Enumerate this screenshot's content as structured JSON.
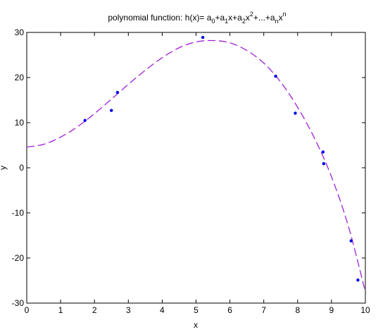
{
  "chart_data": {
    "type": "scatter",
    "title": "polynomial function: h(x)= a0+a1x+a2x2+...+anxn",
    "xlabel": "x",
    "ylabel": "y",
    "xlim": [
      0,
      10
    ],
    "ylim": [
      -30,
      30
    ],
    "xticks": [
      0,
      1,
      2,
      3,
      4,
      5,
      6,
      7,
      8,
      9,
      10
    ],
    "yticks": [
      -30,
      -20,
      -10,
      0,
      10,
      20,
      30
    ],
    "grid": false,
    "points": {
      "x": [
        1.72,
        2.5,
        2.68,
        5.2,
        7.35,
        7.93,
        8.75,
        8.77,
        9.58,
        9.78
      ],
      "y": [
        10.5,
        12.7,
        16.7,
        28.9,
        20.3,
        12.1,
        3.5,
        0.9,
        -16.2,
        -24.9
      ]
    },
    "fit_curve": {
      "x": [
        0,
        0.5,
        1,
        1.5,
        2,
        2.5,
        3,
        3.5,
        4,
        4.5,
        5,
        5.5,
        6,
        6.5,
        7,
        7.5,
        8,
        8.5,
        9,
        9.5,
        10
      ],
      "y": [
        4.6,
        5.2,
        6.8,
        9.1,
        12.0,
        15.2,
        18.5,
        21.6,
        24.4,
        26.6,
        27.9,
        28.2,
        27.7,
        26.0,
        23.2,
        19.0,
        13.4,
        6.5,
        -2.0,
        -13.0,
        -27.5
      ]
    },
    "colors": {
      "points": "#0000ee",
      "curve": "#a020d8"
    }
  }
}
